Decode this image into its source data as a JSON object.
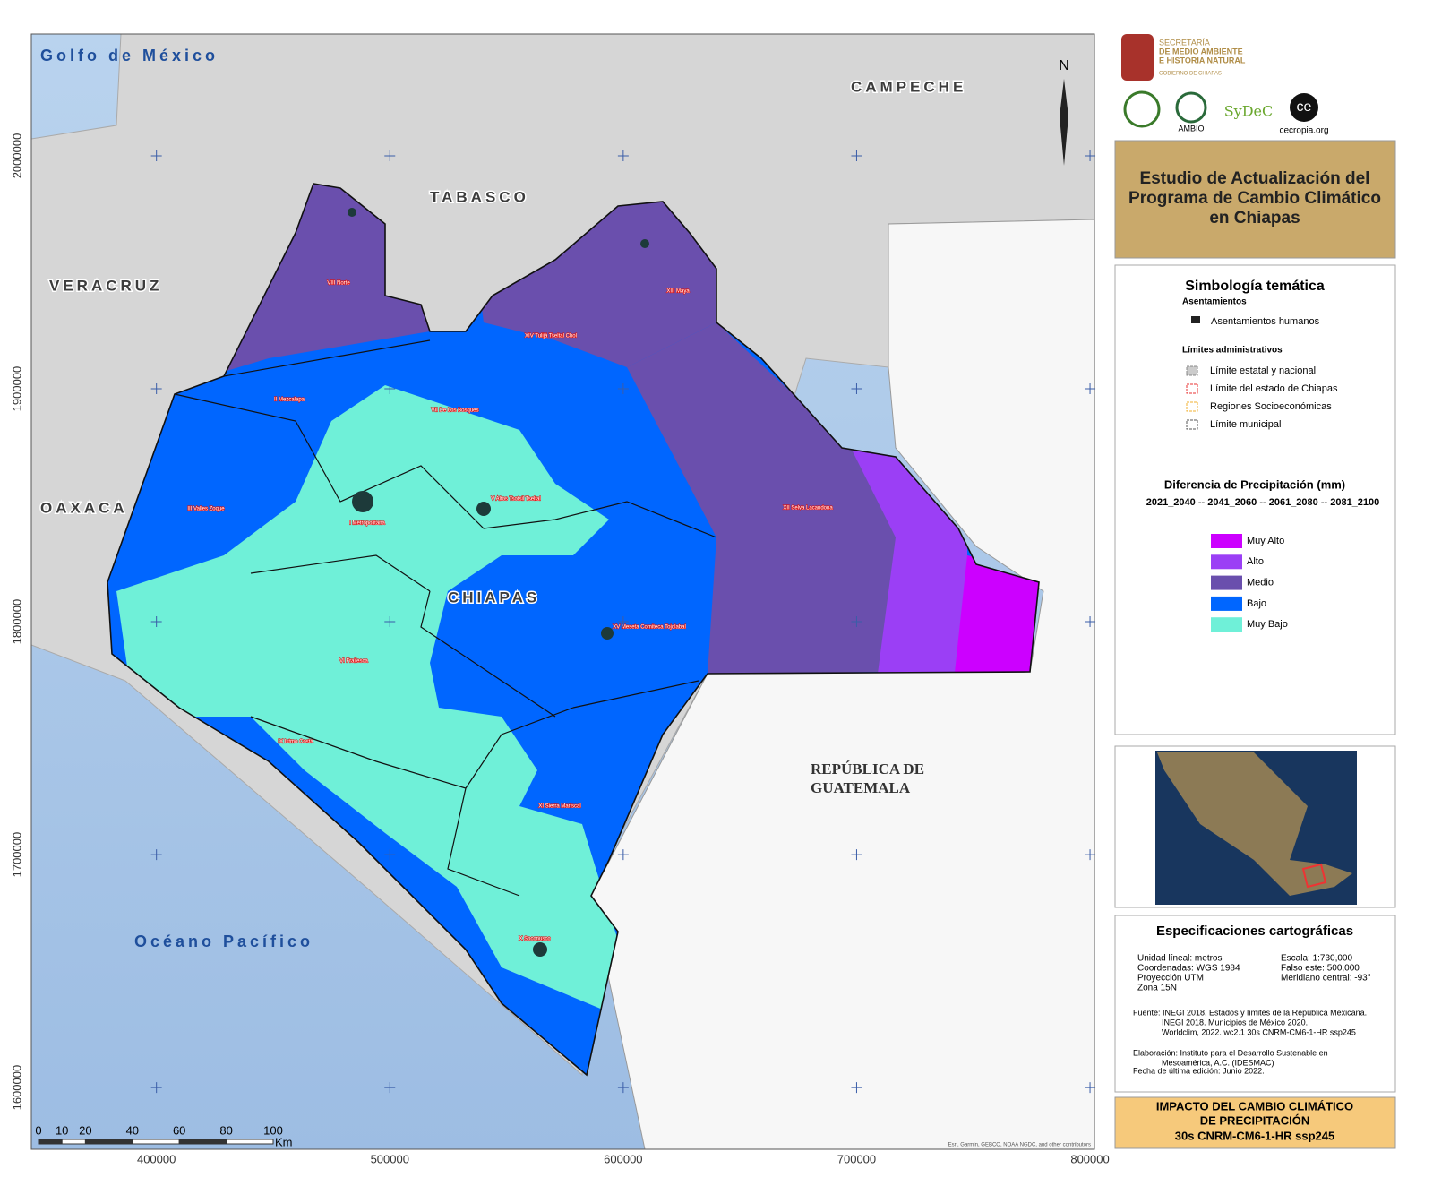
{
  "header": {
    "logo_lines": [
      "SECRETARÍA",
      "DE MEDIO AMBIENTE",
      "E HISTORIA NATURAL",
      "GOBIERNO DE CHIAPAS"
    ],
    "partners": [
      "AMBIO",
      "SyDeC",
      "ce",
      "cecropia.org"
    ]
  },
  "title": [
    "Estudio de Actualización del",
    "Programa de Cambio Climático",
    "en Chiapas"
  ],
  "legend": {
    "title": "Simbología temática",
    "settlements_heading": "Asentamientos",
    "settlements_item": "Asentamientos humanos",
    "admin_heading": "Límites administrativos",
    "admin_items": [
      {
        "label": "Límite estatal y nacional",
        "color": "#888888"
      },
      {
        "label": "Límite del estado de Chiapas",
        "color": "#e83030"
      },
      {
        "label": "Regiones Socioeconómicas",
        "color": "#f0b030"
      },
      {
        "label": "Límite municipal",
        "color": "#555555"
      }
    ],
    "precip_title": "Diferencia de Precipitación (mm)",
    "precip_periods": "2021_2040 -- 2041_2060 -- 2061_2080 -- 2081_2100",
    "classes": [
      {
        "label": "Muy Alto",
        "color": "#cc00ff"
      },
      {
        "label": "Alto",
        "color": "#9b3ff5"
      },
      {
        "label": "Medio",
        "color": "#6a4fad"
      },
      {
        "label": "Bajo",
        "color": "#0066ff"
      },
      {
        "label": "Muy Bajo",
        "color": "#6ff0d8"
      }
    ]
  },
  "specs": {
    "title": "Especificaciones cartográficas",
    "left": [
      "Unidad líneal: metros",
      "Coordenadas: WGS 1984",
      "Proyección UTM",
      "Zona 15N"
    ],
    "right": [
      "Escala: 1:730,000",
      "Falso este: 500,000",
      "Meridiano central: -93°"
    ],
    "notes": [
      "Fuente: INEGI 2018. Estados y límites de la República Mexicana.",
      "INEGI 2018. Municipios de México 2020.",
      "Worldclim, 2022. wc2.1 30s CNRM-CM6-1-HR ssp245",
      "Elaboración: Instituto para el Desarrollo Sustenable en",
      "Mesoamérica, A.C. (IDESMAC)",
      "Fecha de última edición: Junio 2022."
    ]
  },
  "footer": [
    "IMPACTO DEL CAMBIO CLIMÁTICO",
    "DE PRECIPITACIÓN",
    "30s CNRM-CM6-1-HR ssp245"
  ],
  "map": {
    "xlim": [
      346400,
      801900
    ],
    "ylim": [
      1573500,
      2052300
    ],
    "xticks": [
      400000,
      500000,
      600000,
      700000,
      800000
    ],
    "yticks": [
      1600000,
      1700000,
      1800000,
      1900000,
      2000000
    ],
    "north": "N",
    "attribution": "Esri, Garmin, GEBCO, NOAA NGDC, and other contributors",
    "places": [
      "Golfo de México",
      "CAMPECHE",
      "TABASCO",
      "VERACRUZ",
      "OAXACA",
      "CHIAPAS",
      "REPÚBLICA DE",
      "GUATEMALA",
      "Océano Pacífico"
    ],
    "regions": [
      "VIII Norte",
      "XIII Maya",
      "XIV Tulijá Tseltal Chol",
      "II Mezcalapa",
      "VII De Los Bosques",
      "V Altos Tsotsil Tseltal",
      "III Valles Zoque",
      "I Metropolitana",
      "XII Selva Lacandona",
      "XV Meseta Comiteca Tojolabal",
      "VI Frailesca",
      "IX Istmo Costa",
      "XI Sierra Mariscal",
      "X Soconusco"
    ],
    "scale": {
      "ticks": [
        0,
        10,
        20,
        40,
        60,
        80,
        100
      ],
      "unit": "Km"
    }
  }
}
